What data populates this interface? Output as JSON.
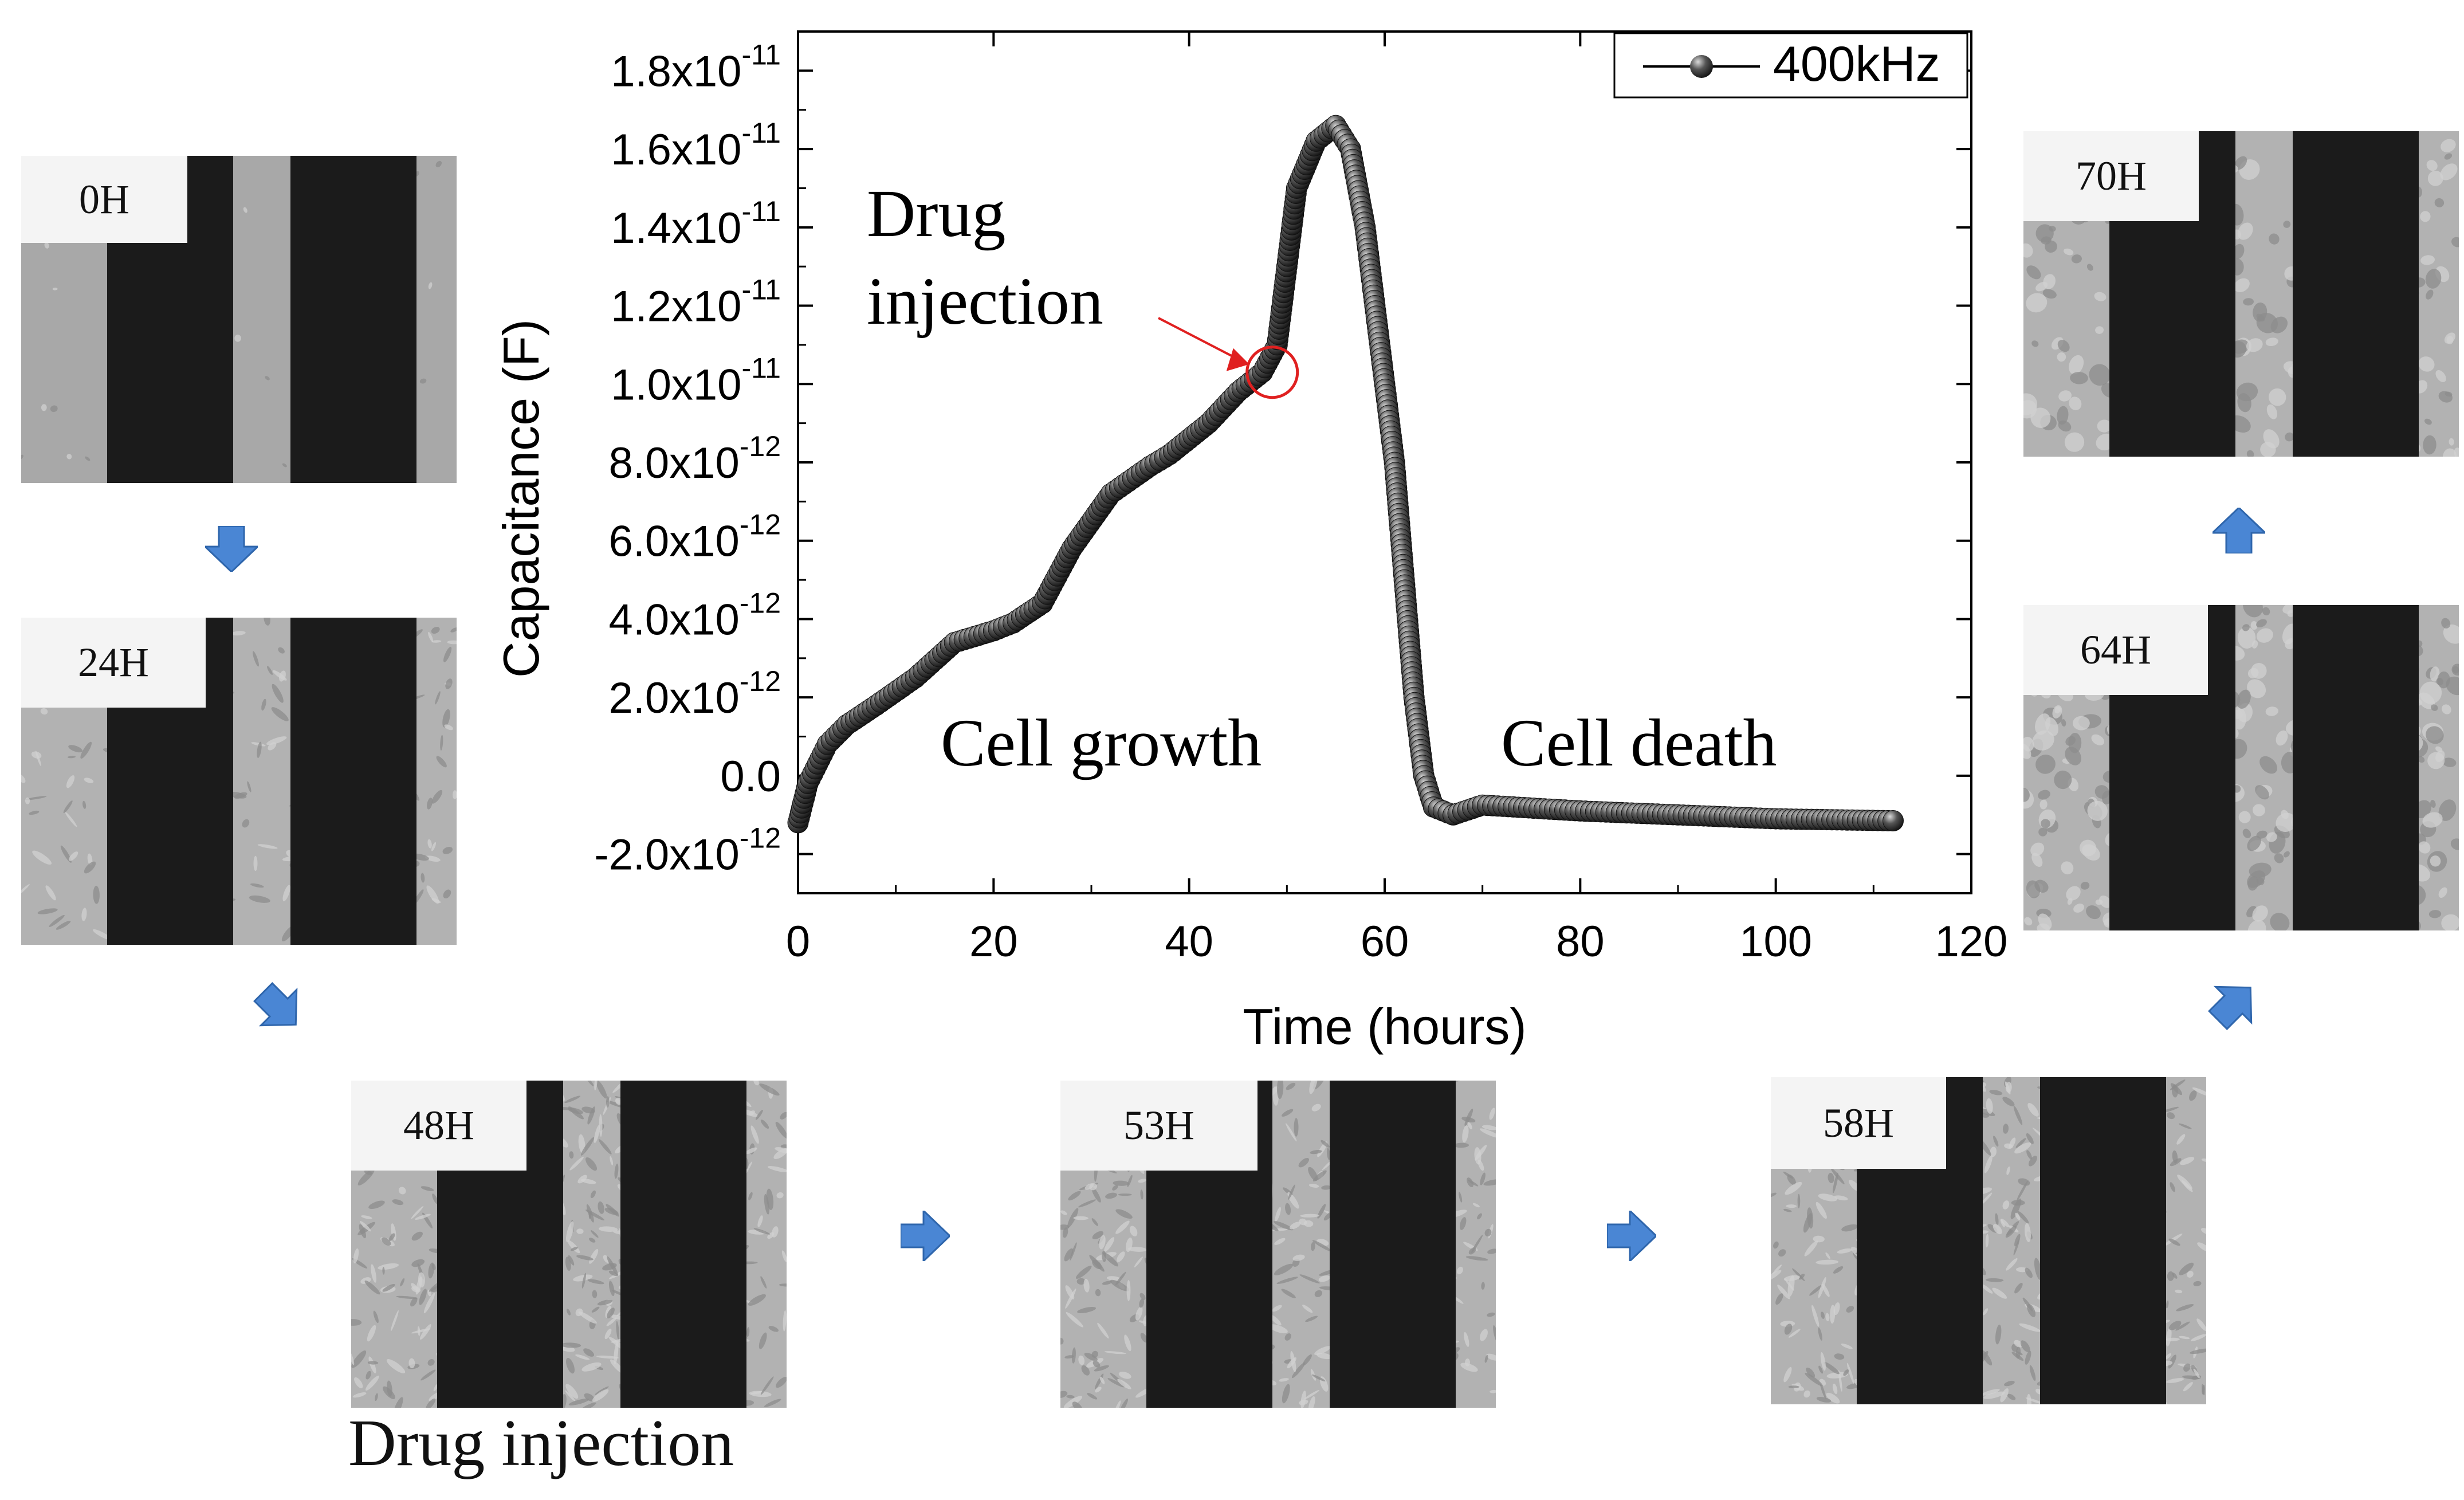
{
  "timepoints": [
    {
      "label": "0H",
      "phase": "sparse"
    },
    {
      "label": "24H",
      "phase": "growing"
    },
    {
      "label": "48H",
      "phase": "confluent"
    },
    {
      "label": "53H",
      "phase": "confluent"
    },
    {
      "label": "58H",
      "phase": "confluent"
    },
    {
      "label": "64H",
      "phase": "detaching"
    },
    {
      "label": "70H",
      "phase": "dead"
    }
  ],
  "drug_injection_caption": "Drug injection",
  "colors": {
    "marker": "#2b2b2b",
    "highlight": "#e02020",
    "flow_arrow": "#4a86d4",
    "frame": "#000000"
  },
  "chart_data": {
    "type": "scatter",
    "title": "",
    "xlabel": "Time (hours)",
    "ylabel": "Capacitance (F)",
    "xlim": [
      0,
      120
    ],
    "ylim": [
      -3e-12,
      1.9e-11
    ],
    "xticks": [
      0,
      20,
      40,
      60,
      80,
      100,
      120
    ],
    "xtick_labels": [
      "0",
      "20",
      "40",
      "60",
      "80",
      "100",
      "120"
    ],
    "yticks": [
      -2e-12,
      0,
      2e-12,
      4e-12,
      6e-12,
      8e-12,
      1e-11,
      1.2e-11,
      1.4e-11,
      1.6e-11,
      1.8e-11
    ],
    "ytick_labels": [
      {
        "base": "-2.0x10",
        "exp": "-12"
      },
      {
        "base": "0.0",
        "exp": ""
      },
      {
        "base": "2.0x10",
        "exp": "-12"
      },
      {
        "base": "4.0x10",
        "exp": "-12"
      },
      {
        "base": "6.0x10",
        "exp": "-12"
      },
      {
        "base": "8.0x10",
        "exp": "-12"
      },
      {
        "base": "1.0x10",
        "exp": "-11"
      },
      {
        "base": "1.2x10",
        "exp": "-11"
      },
      {
        "base": "1.4x10",
        "exp": "-11"
      },
      {
        "base": "1.6x10",
        "exp": "-11"
      },
      {
        "base": "1.8x10",
        "exp": "-11"
      }
    ],
    "legend": {
      "label": "400kHz",
      "position": "top-right"
    },
    "series": [
      {
        "name": "400kHz",
        "marker": "sphere",
        "key_points": [
          {
            "x": 0,
            "y": -1.2e-12
          },
          {
            "x": 1,
            "y": -2e-13
          },
          {
            "x": 3,
            "y": 8e-13
          },
          {
            "x": 5,
            "y": 1.3e-12
          },
          {
            "x": 8,
            "y": 1.8e-12
          },
          {
            "x": 12,
            "y": 2.5e-12
          },
          {
            "x": 16,
            "y": 3.4e-12
          },
          {
            "x": 20,
            "y": 3.7e-12
          },
          {
            "x": 22,
            "y": 3.9e-12
          },
          {
            "x": 25,
            "y": 4.4e-12
          },
          {
            "x": 28,
            "y": 5.8e-12
          },
          {
            "x": 32,
            "y": 7.2e-12
          },
          {
            "x": 36,
            "y": 7.9e-12
          },
          {
            "x": 38,
            "y": 8.2e-12
          },
          {
            "x": 42,
            "y": 9e-12
          },
          {
            "x": 45,
            "y": 9.8e-12
          },
          {
            "x": 47.5,
            "y": 1.03e-11
          },
          {
            "x": 49,
            "y": 1.1e-11
          },
          {
            "x": 50,
            "y": 1.3e-11
          },
          {
            "x": 51,
            "y": 1.5e-11
          },
          {
            "x": 53,
            "y": 1.62e-11
          },
          {
            "x": 55,
            "y": 1.66e-11
          },
          {
            "x": 56.5,
            "y": 1.6e-11
          },
          {
            "x": 58,
            "y": 1.4e-11
          },
          {
            "x": 59,
            "y": 1.2e-11
          },
          {
            "x": 60,
            "y": 1e-11
          },
          {
            "x": 61,
            "y": 8e-12
          },
          {
            "x": 62,
            "y": 5e-12
          },
          {
            "x": 63,
            "y": 2e-12
          },
          {
            "x": 64,
            "y": 0.0
          },
          {
            "x": 65,
            "y": -8e-13
          },
          {
            "x": 67,
            "y": -1e-12
          },
          {
            "x": 70,
            "y": -7.5e-13
          },
          {
            "x": 80,
            "y": -9e-13
          },
          {
            "x": 90,
            "y": -1e-12
          },
          {
            "x": 100,
            "y": -1.1e-12
          },
          {
            "x": 112,
            "y": -1.15e-12
          }
        ]
      }
    ],
    "annotations": [
      {
        "text_lines": [
          "Drug",
          "injection"
        ],
        "target": {
          "x": 48.5,
          "y": 1.03e-11
        },
        "marker": "red-circle",
        "arrow": true
      },
      {
        "text": "Cell growth",
        "at": {
          "x": 31,
          "y": 8e-13
        }
      },
      {
        "text": "Cell death",
        "at": {
          "x": 86,
          "y": 8e-13
        }
      }
    ]
  }
}
